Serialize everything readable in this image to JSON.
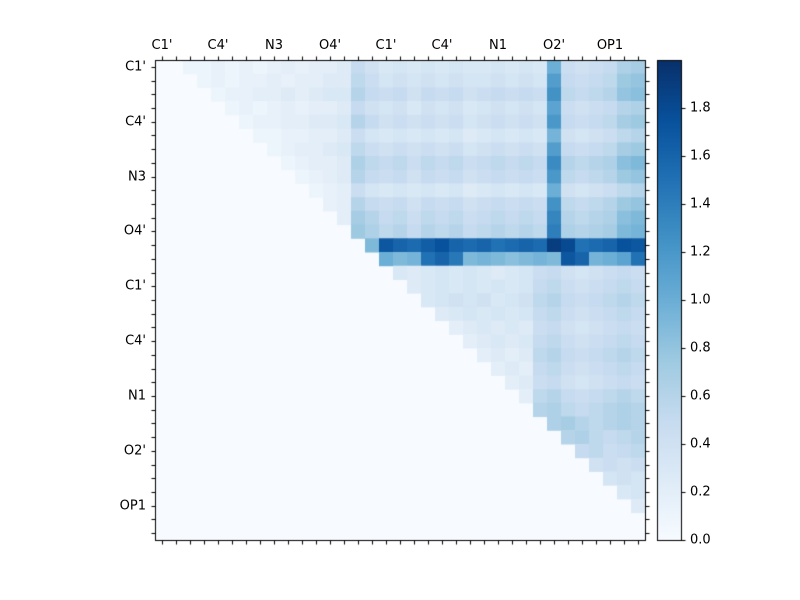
{
  "chart_data": {
    "type": "heatmap",
    "title": "",
    "triangular": "upper",
    "n": 35,
    "tick_indices": [
      0,
      4,
      8,
      12,
      16,
      20,
      24,
      28,
      32
    ],
    "x_tick_labels": [
      "C1'",
      "C4'",
      "N3",
      "O4'",
      "C1'",
      "C4'",
      "N1",
      "O2'",
      "OP1"
    ],
    "y_tick_labels": [
      "C1'",
      "C4'",
      "N3",
      "O4'",
      "C1'",
      "C4'",
      "N1",
      "O2'",
      "OP1"
    ],
    "vmin": 0.0,
    "vmax": 2.0,
    "grid": false,
    "colorbar_position": "right",
    "colorbar_ticks": [
      {
        "value": 0.0,
        "label": "0.0"
      },
      {
        "value": 0.2,
        "label": "0.2"
      },
      {
        "value": 0.4,
        "label": "0.4"
      },
      {
        "value": 0.6,
        "label": "0.6"
      },
      {
        "value": 0.8,
        "label": "0.8"
      },
      {
        "value": 1.0,
        "label": "1.0"
      },
      {
        "value": 1.2,
        "label": "1.2"
      },
      {
        "value": 1.4,
        "label": "1.4"
      },
      {
        "value": 1.6,
        "label": "1.6"
      },
      {
        "value": 1.8,
        "label": "1.8"
      }
    ],
    "colormap": {
      "name": "Blues",
      "low_hex": "#f7fbff",
      "high_hex": "#08306b",
      "anchors": [
        [
          0.0,
          [
            247,
            251,
            255
          ]
        ],
        [
          0.125,
          [
            222,
            235,
            247
          ]
        ],
        [
          0.25,
          [
            198,
            219,
            239
          ]
        ],
        [
          0.375,
          [
            158,
            202,
            225
          ]
        ],
        [
          0.5,
          [
            107,
            174,
            214
          ]
        ],
        [
          0.625,
          [
            66,
            146,
            198
          ]
        ],
        [
          0.75,
          [
            33,
            113,
            181
          ]
        ],
        [
          0.875,
          [
            8,
            81,
            156
          ]
        ],
        [
          1.0,
          [
            8,
            48,
            107
          ]
        ]
      ]
    },
    "rows": [
      {
        "start": 2,
        "values": [
          0.1,
          0.1,
          0.15,
          0.1,
          0.15,
          0.1,
          0.15,
          0.2,
          0.15,
          0.2,
          0.2,
          0.25,
          0.5,
          0.4,
          0.3,
          0.35,
          0.3,
          0.35,
          0.3,
          0.35,
          0.3,
          0.3,
          0.35,
          0.3,
          0.35,
          0.3,
          1.0,
          0.45,
          0.4,
          0.45,
          0.5,
          0.65,
          0.7
        ]
      },
      {
        "start": 3,
        "values": [
          0.1,
          0.15,
          0.1,
          0.15,
          0.15,
          0.2,
          0.15,
          0.2,
          0.2,
          0.25,
          0.25,
          0.55,
          0.45,
          0.35,
          0.4,
          0.35,
          0.4,
          0.35,
          0.4,
          0.35,
          0.35,
          0.4,
          0.35,
          0.4,
          0.35,
          1.15,
          0.5,
          0.45,
          0.5,
          0.55,
          0.75,
          0.8
        ]
      },
      {
        "start": 4,
        "values": [
          0.1,
          0.15,
          0.15,
          0.2,
          0.2,
          0.25,
          0.2,
          0.25,
          0.3,
          0.3,
          0.6,
          0.5,
          0.45,
          0.5,
          0.4,
          0.5,
          0.45,
          0.5,
          0.4,
          0.45,
          0.5,
          0.45,
          0.5,
          0.45,
          1.25,
          0.55,
          0.5,
          0.55,
          0.6,
          0.8,
          0.85
        ]
      },
      {
        "start": 5,
        "values": [
          0.1,
          0.15,
          0.1,
          0.15,
          0.2,
          0.15,
          0.2,
          0.2,
          0.25,
          0.5,
          0.4,
          0.35,
          0.4,
          0.3,
          0.4,
          0.35,
          0.4,
          0.3,
          0.35,
          0.4,
          0.35,
          0.4,
          0.35,
          1.1,
          0.45,
          0.4,
          0.45,
          0.5,
          0.6,
          0.65
        ]
      },
      {
        "start": 6,
        "values": [
          0.1,
          0.15,
          0.15,
          0.2,
          0.2,
          0.25,
          0.25,
          0.3,
          0.6,
          0.5,
          0.4,
          0.45,
          0.4,
          0.45,
          0.4,
          0.45,
          0.35,
          0.4,
          0.45,
          0.4,
          0.45,
          0.4,
          1.2,
          0.5,
          0.45,
          0.5,
          0.55,
          0.7,
          0.75
        ]
      },
      {
        "start": 7,
        "values": [
          0.1,
          0.1,
          0.15,
          0.15,
          0.2,
          0.2,
          0.25,
          0.45,
          0.35,
          0.3,
          0.35,
          0.3,
          0.35,
          0.3,
          0.35,
          0.25,
          0.3,
          0.35,
          0.3,
          0.35,
          0.3,
          0.95,
          0.4,
          0.35,
          0.4,
          0.45,
          0.55,
          0.6
        ]
      },
      {
        "start": 8,
        "values": [
          0.1,
          0.15,
          0.2,
          0.2,
          0.25,
          0.3,
          0.55,
          0.45,
          0.4,
          0.45,
          0.4,
          0.45,
          0.4,
          0.45,
          0.35,
          0.4,
          0.45,
          0.4,
          0.45,
          0.4,
          1.15,
          0.5,
          0.45,
          0.5,
          0.55,
          0.7,
          0.75
        ]
      },
      {
        "start": 9,
        "values": [
          0.1,
          0.15,
          0.2,
          0.2,
          0.25,
          0.65,
          0.55,
          0.5,
          0.55,
          0.45,
          0.55,
          0.5,
          0.55,
          0.45,
          0.5,
          0.55,
          0.5,
          0.55,
          0.5,
          1.3,
          0.6,
          0.55,
          0.6,
          0.65,
          0.85,
          0.9
        ]
      },
      {
        "start": 10,
        "values": [
          0.1,
          0.15,
          0.2,
          0.25,
          0.6,
          0.5,
          0.45,
          0.5,
          0.4,
          0.5,
          0.45,
          0.5,
          0.4,
          0.45,
          0.5,
          0.45,
          0.5,
          0.45,
          1.2,
          0.55,
          0.5,
          0.55,
          0.6,
          0.75,
          0.8
        ]
      },
      {
        "start": 11,
        "values": [
          0.1,
          0.15,
          0.2,
          0.45,
          0.35,
          0.3,
          0.35,
          0.3,
          0.35,
          0.3,
          0.35,
          0.25,
          0.3,
          0.35,
          0.3,
          0.35,
          0.3,
          1.0,
          0.4,
          0.35,
          0.4,
          0.45,
          0.55,
          0.6
        ]
      },
      {
        "start": 12,
        "values": [
          0.15,
          0.2,
          0.6,
          0.5,
          0.45,
          0.5,
          0.4,
          0.5,
          0.45,
          0.5,
          0.4,
          0.45,
          0.5,
          0.45,
          0.5,
          0.45,
          1.25,
          0.55,
          0.5,
          0.55,
          0.6,
          0.75,
          0.8
        ]
      },
      {
        "start": 13,
        "values": [
          0.2,
          0.7,
          0.6,
          0.5,
          0.55,
          0.45,
          0.55,
          0.5,
          0.55,
          0.45,
          0.5,
          0.55,
          0.5,
          0.55,
          0.5,
          1.35,
          0.6,
          0.55,
          0.6,
          0.65,
          0.85,
          0.9
        ]
      },
      {
        "start": 14,
        "values": [
          0.75,
          0.65,
          0.55,
          0.6,
          0.5,
          0.6,
          0.55,
          0.6,
          0.5,
          0.55,
          0.6,
          0.55,
          0.6,
          0.55,
          1.4,
          0.65,
          0.6,
          0.65,
          0.7,
          0.9,
          0.95
        ]
      },
      {
        "start": 15,
        "values": [
          0.9,
          1.7,
          1.6,
          1.55,
          1.65,
          1.75,
          1.6,
          1.55,
          1.6,
          1.5,
          1.55,
          1.6,
          1.55,
          1.9,
          1.8,
          1.5,
          1.55,
          1.6,
          1.75,
          1.7
        ]
      },
      {
        "start": 16,
        "values": [
          1.0,
          0.9,
          0.95,
          1.5,
          1.6,
          1.45,
          0.9,
          0.95,
          0.9,
          0.85,
          0.9,
          0.95,
          0.9,
          1.7,
          1.6,
          0.95,
          1.0,
          1.1,
          1.5,
          1.2
        ]
      },
      {
        "start": 17,
        "values": [
          0.3,
          0.25,
          0.3,
          0.35,
          0.3,
          0.35,
          0.3,
          0.25,
          0.3,
          0.35,
          0.45,
          0.5,
          0.4,
          0.35,
          0.4,
          0.45,
          0.5,
          0.45
        ]
      },
      {
        "start": 18,
        "values": [
          0.25,
          0.3,
          0.35,
          0.3,
          0.35,
          0.3,
          0.35,
          0.3,
          0.35,
          0.5,
          0.55,
          0.45,
          0.4,
          0.45,
          0.5,
          0.55,
          0.5
        ]
      },
      {
        "start": 19,
        "values": [
          0.3,
          0.35,
          0.4,
          0.35,
          0.4,
          0.3,
          0.35,
          0.4,
          0.55,
          0.6,
          0.5,
          0.45,
          0.5,
          0.55,
          0.6,
          0.55
        ]
      },
      {
        "start": 20,
        "values": [
          0.25,
          0.3,
          0.35,
          0.3,
          0.35,
          0.3,
          0.35,
          0.5,
          0.55,
          0.45,
          0.4,
          0.45,
          0.5,
          0.55,
          0.5
        ]
      },
      {
        "start": 21,
        "values": [
          0.2,
          0.25,
          0.3,
          0.25,
          0.3,
          0.25,
          0.45,
          0.5,
          0.4,
          0.35,
          0.4,
          0.45,
          0.5,
          0.45
        ]
      },
      {
        "start": 22,
        "values": [
          0.2,
          0.25,
          0.3,
          0.25,
          0.3,
          0.5,
          0.55,
          0.45,
          0.4,
          0.45,
          0.5,
          0.55,
          0.5
        ]
      },
      {
        "start": 23,
        "values": [
          0.2,
          0.25,
          0.2,
          0.25,
          0.55,
          0.6,
          0.5,
          0.45,
          0.5,
          0.55,
          0.6,
          0.55
        ]
      },
      {
        "start": 24,
        "values": [
          0.2,
          0.25,
          0.2,
          0.5,
          0.55,
          0.45,
          0.4,
          0.45,
          0.5,
          0.55,
          0.5
        ]
      },
      {
        "start": 25,
        "values": [
          0.2,
          0.25,
          0.45,
          0.5,
          0.4,
          0.35,
          0.4,
          0.45,
          0.5,
          0.45
        ]
      },
      {
        "start": 26,
        "values": [
          0.2,
          0.55,
          0.6,
          0.5,
          0.45,
          0.5,
          0.55,
          0.6,
          0.55
        ]
      },
      {
        "start": 27,
        "values": [
          0.6,
          0.65,
          0.55,
          0.5,
          0.55,
          0.6,
          0.65,
          0.6
        ]
      },
      {
        "start": 28,
        "values": [
          0.65,
          0.7,
          0.6,
          0.55,
          0.6,
          0.65,
          0.6
        ]
      },
      {
        "start": 29,
        "values": [
          0.6,
          0.65,
          0.55,
          0.5,
          0.55,
          0.6
        ]
      },
      {
        "start": 30,
        "values": [
          0.5,
          0.55,
          0.45,
          0.5,
          0.55
        ]
      },
      {
        "start": 31,
        "values": [
          0.4,
          0.45,
          0.4,
          0.45
        ]
      },
      {
        "start": 32,
        "values": [
          0.35,
          0.4,
          0.35
        ]
      },
      {
        "start": 33,
        "values": [
          0.3,
          0.35
        ]
      },
      {
        "start": 34,
        "values": [
          0.25
        ]
      },
      {
        "start": 35,
        "values": []
      },
      {
        "start": 35,
        "values": []
      }
    ]
  }
}
